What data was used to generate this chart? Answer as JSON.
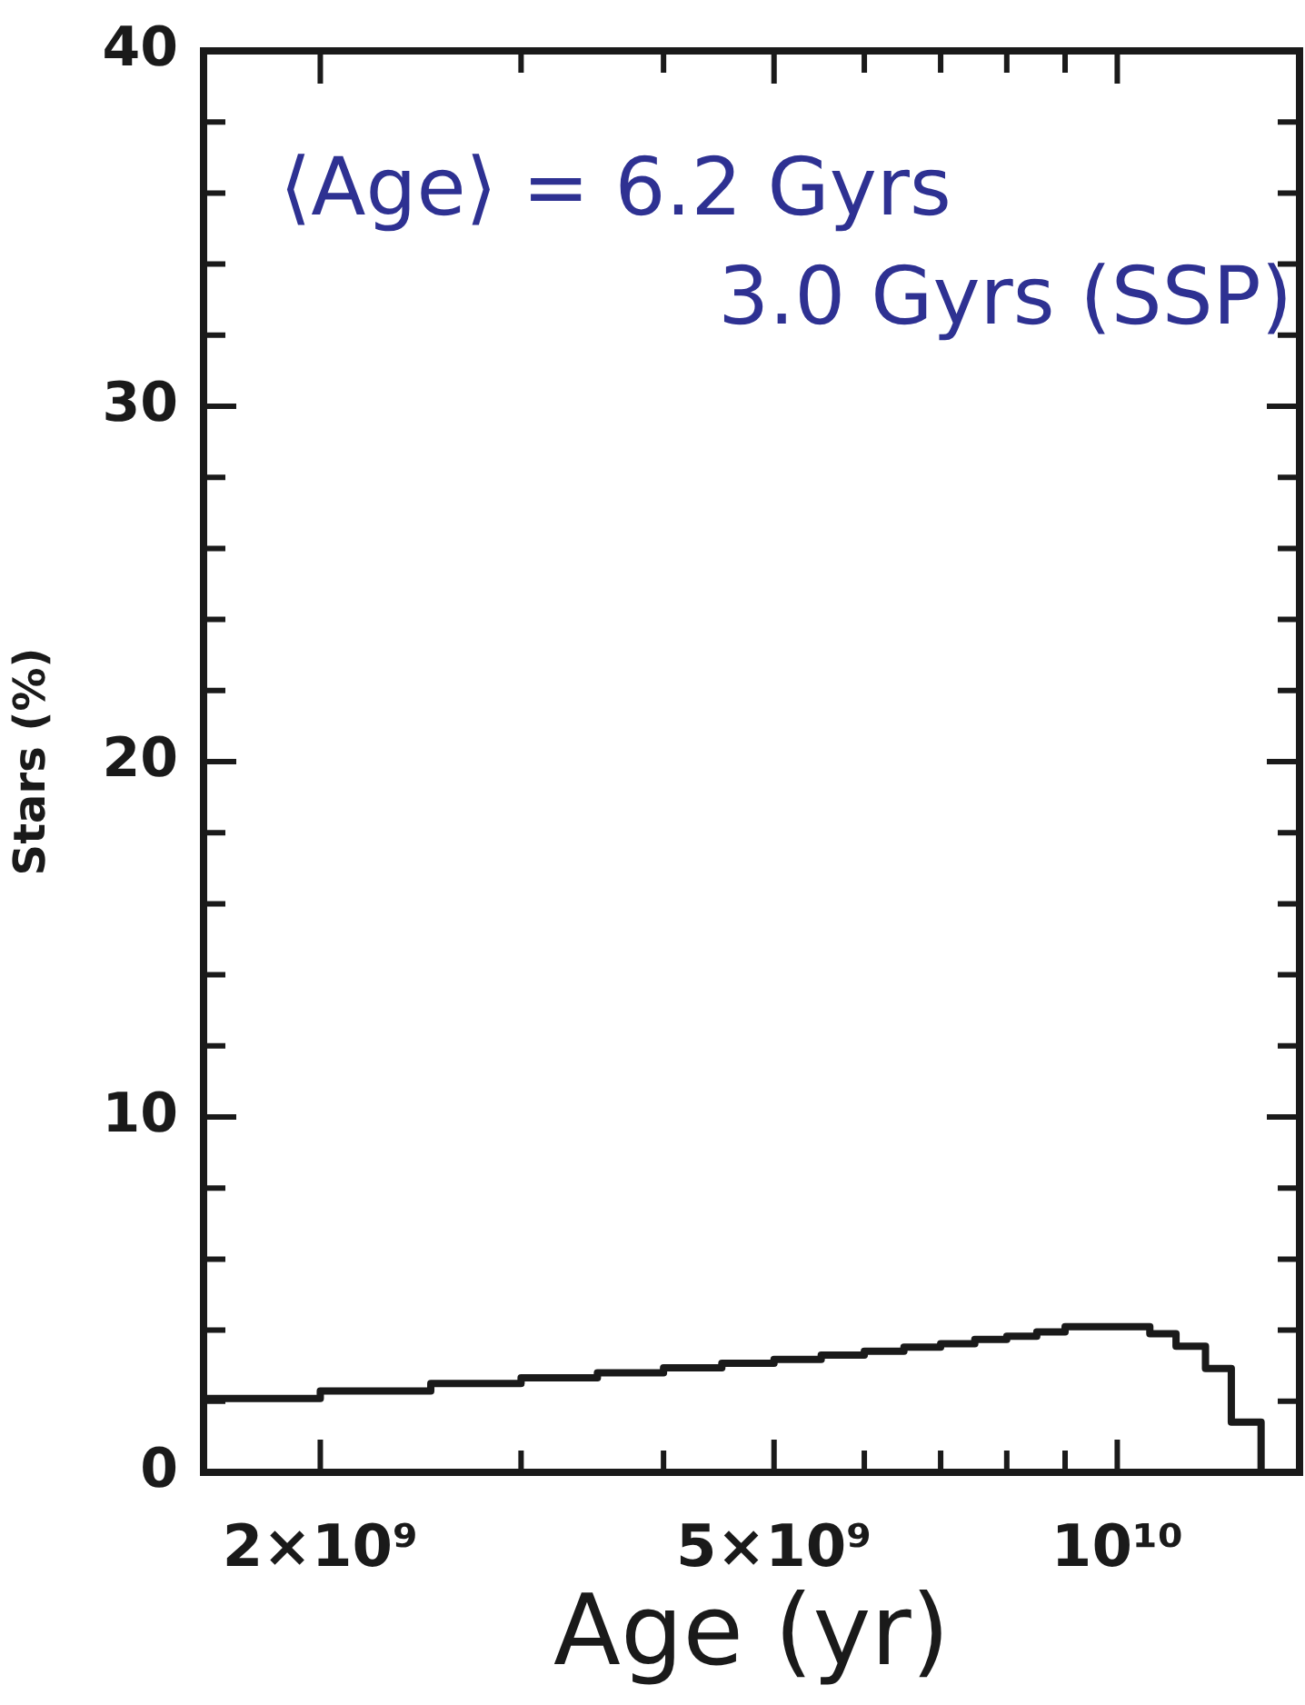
{
  "chart_data": {
    "type": "step",
    "xlabel": "Age (yr)",
    "ylabel": "Stars (%)",
    "annotations": [
      "⟨Age⟩ = 6.2 Gyrs",
      "3.0 Gyrs (SSP)"
    ],
    "log": "x",
    "grid": false,
    "legend": false,
    "line_style": "solid",
    "marker": "none",
    "xlim": [
      1580000000.0,
      14450000000.0
    ],
    "ylim": [
      0,
      40
    ],
    "xticks": [
      {
        "value": 2000000000.0,
        "label": "2×10⁹"
      },
      {
        "value": 3000000000.0,
        "label": null
      },
      {
        "value": 4000000000.0,
        "label": null
      },
      {
        "value": 5000000000.0,
        "label": "5×10⁹"
      },
      {
        "value": 6000000000.0,
        "label": null
      },
      {
        "value": 7000000000.0,
        "label": null
      },
      {
        "value": 8000000000.0,
        "label": null
      },
      {
        "value": 9000000000.0,
        "label": null
      },
      {
        "value": 10000000000.0,
        "label": "10¹⁰"
      }
    ],
    "yticks": [
      0,
      {
        "value": 2,
        "label": null
      },
      {
        "value": 4,
        "label": null
      },
      {
        "value": 6,
        "label": null
      },
      {
        "value": 8,
        "label": null
      },
      10,
      {
        "value": 12,
        "label": null
      },
      {
        "value": 14,
        "label": null
      },
      {
        "value": 16,
        "label": null
      },
      {
        "value": 18,
        "label": null
      },
      20,
      {
        "value": 22,
        "label": null
      },
      {
        "value": 24,
        "label": null
      },
      {
        "value": 26,
        "label": null
      },
      {
        "value": 28,
        "label": null
      },
      30,
      {
        "value": 32,
        "label": null
      },
      {
        "value": 34,
        "label": null
      },
      {
        "value": 36,
        "label": null
      },
      {
        "value": 38,
        "label": null
      },
      40
    ],
    "x": [
      1580000000.0,
      2000000000.0,
      2500000000.0,
      3000000000.0,
      3500000000.0,
      4000000000.0,
      4500000000.0,
      5000000000.0,
      5500000000.0,
      6000000000.0,
      6500000000.0,
      7000000000.0,
      7500000000.0,
      8000000000.0,
      8500000000.0,
      9000000000.0,
      9500000000.0,
      10100000000.0,
      10680000000.0,
      11260000000.0,
      11950000000.0,
      12590000000.0,
      13370000000.0,
      14450000000.0
    ],
    "series": [
      {
        "color": "#1a1a1a",
        "values": [
          2.08,
          2.29,
          2.5,
          2.66,
          2.8,
          2.94,
          3.07,
          3.18,
          3.3,
          3.41,
          3.52,
          3.62,
          3.74,
          3.83,
          3.95,
          4.1,
          4.1,
          4.1,
          3.9,
          3.55,
          2.92,
          1.41,
          0,
          0
        ]
      }
    ]
  }
}
